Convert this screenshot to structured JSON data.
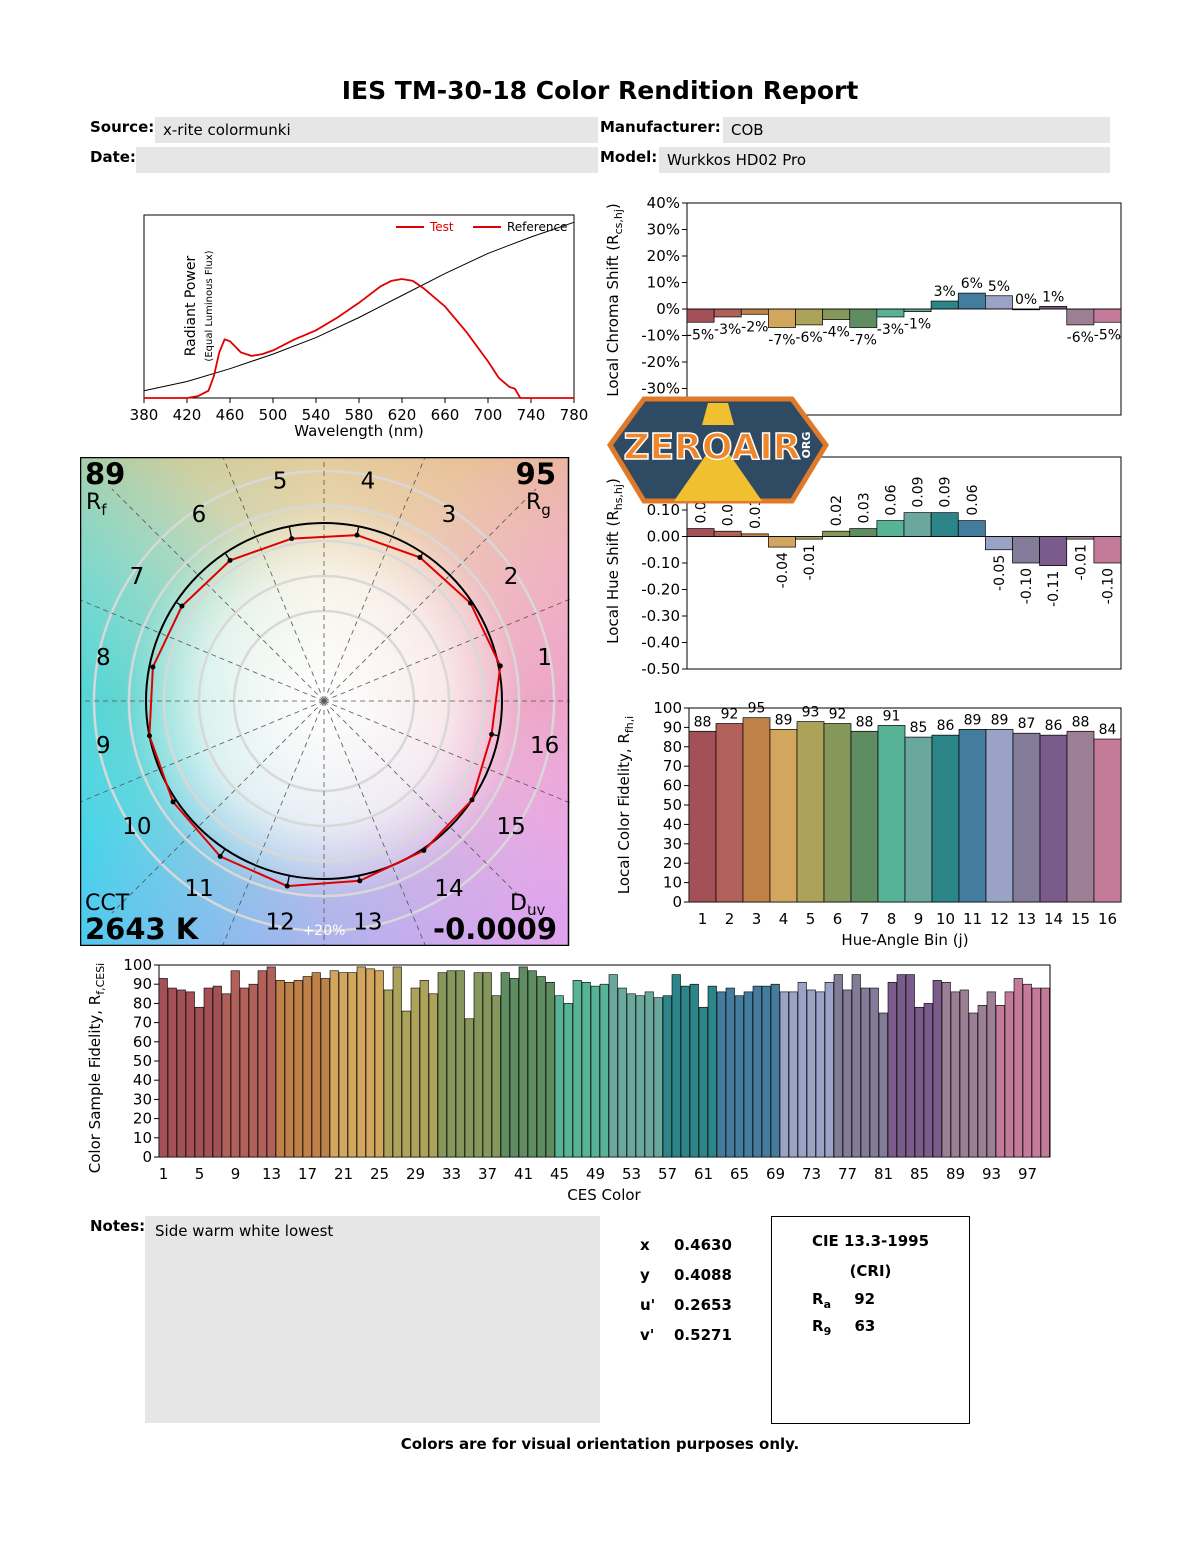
{
  "report": {
    "title": "IES TM-30-18 Color Rendition Report",
    "source_label": "Source:",
    "source": "x-rite colormunki",
    "manufacturer_label": "Manufacturer:",
    "manufacturer": "COB",
    "date_label": "Date:",
    "date": "",
    "model_label": "Model:",
    "model": "Wurkkos HD02 Pro",
    "notes_label": "Notes:",
    "notes": "Side warm white lowest",
    "footer": "Colors are for visual orientation purposes only."
  },
  "chromaticity": [
    {
      "label": "x",
      "value": "0.4630"
    },
    {
      "label": "y",
      "value": "0.4088"
    },
    {
      "label": "u'",
      "value": "0.2653"
    },
    {
      "label": "v'",
      "value": "0.5271"
    }
  ],
  "cri": {
    "title": "CIE 13.3-1995",
    "subtitle": "(CRI)",
    "ra_label": "R",
    "ra_sub": "a",
    "ra": "92",
    "r9_label": "R",
    "r9_sub": "9",
    "r9": "63"
  },
  "watermark": {
    "text": "ZEROAIR",
    "suffix": "ORG"
  },
  "chart_data": [
    {
      "type": "line",
      "id": "spectrum",
      "xlabel": "Wavelength (nm)",
      "ylabel": "Radiant Power",
      "ylabel_sub": "(Equal Luminous Flux)",
      "xlim": [
        380,
        780
      ],
      "xticks": [
        380,
        420,
        460,
        500,
        540,
        580,
        620,
        660,
        700,
        740,
        780
      ],
      "legend": "top-right",
      "series": [
        {
          "name": "Test",
          "color": "#e00000",
          "x": [
            380,
            420,
            430,
            440,
            445,
            450,
            455,
            460,
            465,
            470,
            480,
            490,
            500,
            520,
            540,
            560,
            580,
            600,
            610,
            620,
            630,
            640,
            660,
            680,
            700,
            710,
            720,
            725,
            730,
            780
          ],
          "y": [
            0,
            0,
            0.01,
            0.04,
            0.12,
            0.25,
            0.32,
            0.31,
            0.28,
            0.25,
            0.23,
            0.24,
            0.26,
            0.32,
            0.37,
            0.44,
            0.52,
            0.61,
            0.64,
            0.65,
            0.64,
            0.6,
            0.5,
            0.36,
            0.2,
            0.11,
            0.06,
            0.05,
            0,
            0
          ]
        },
        {
          "name": "Reference",
          "color": "#000000",
          "x": [
            380,
            420,
            460,
            500,
            540,
            580,
            620,
            660,
            700,
            740,
            780
          ],
          "y": [
            0.04,
            0.09,
            0.16,
            0.24,
            0.33,
            0.44,
            0.56,
            0.68,
            0.79,
            0.88,
            0.96
          ]
        }
      ]
    },
    {
      "type": "bar",
      "id": "chroma-shift",
      "ylabel": "Local Chroma Shift (R",
      "ylabel_sub": "cs,hj",
      "ylabel_end": ")",
      "ylim": [
        -40,
        40
      ],
      "yticks": [
        "40%",
        "30%",
        "20%",
        "10%",
        "0%",
        "-10%",
        "-20%",
        "-30%"
      ],
      "ytick_values": [
        40,
        30,
        20,
        10,
        0,
        -10,
        -20,
        -30
      ],
      "categories": [
        "1",
        "2",
        "3",
        "4",
        "5",
        "6",
        "7",
        "8",
        "9",
        "10",
        "11",
        "12",
        "13",
        "14",
        "15",
        "16"
      ],
      "values": [
        -5,
        -3,
        -2,
        -7,
        -6,
        -4,
        -7,
        -3,
        -1,
        3,
        6,
        5,
        0,
        1,
        -6,
        -5
      ],
      "data_labels": [
        "-5%",
        "-3%",
        "-2%",
        "-7%",
        "-6%",
        "-4%",
        "-7%",
        "-3%",
        "-1%",
        "3%",
        "6%",
        "5%",
        "0%",
        "1%",
        "-6%",
        "-5%"
      ]
    },
    {
      "type": "bar",
      "id": "hue-shift",
      "ylabel": "Local Hue Shift (R",
      "ylabel_sub": "hs,hj",
      "ylabel_end": ")",
      "ylim": [
        -0.5,
        0.3
      ],
      "yticks": [
        "0.20",
        "0.10",
        "0.00",
        "-0.10",
        "-0.20",
        "-0.30",
        "-0.40",
        "-0.50"
      ],
      "ytick_values": [
        0.2,
        0.1,
        0,
        -0.1,
        -0.2,
        -0.3,
        -0.4,
        -0.5
      ],
      "categories": [
        "1",
        "2",
        "3",
        "4",
        "5",
        "6",
        "7",
        "8",
        "9",
        "10",
        "11",
        "12",
        "13",
        "14",
        "15",
        "16"
      ],
      "values": [
        0.03,
        0.02,
        0.01,
        -0.04,
        -0.01,
        0.02,
        0.03,
        0.06,
        0.09,
        0.09,
        0.06,
        -0.05,
        -0.1,
        -0.11,
        -0.01,
        -0.1
      ],
      "data_labels": [
        "0.03",
        "0.02",
        "0.01",
        "-0.04",
        "-0.01",
        "0.02",
        "0.03",
        "0.06",
        "0.09",
        "0.09",
        "0.06",
        "-0.05",
        "-0.10",
        "-0.11",
        "-0.01",
        "-0.10"
      ]
    },
    {
      "type": "bar",
      "id": "local-fidelity",
      "xlabel": "Hue-Angle Bin (j)",
      "ylabel": "Local Color Fidelity, R",
      "ylabel_sub": "fh,i",
      "ylim": [
        0,
        100
      ],
      "yticks": [
        0,
        10,
        20,
        30,
        40,
        50,
        60,
        70,
        80,
        90,
        100
      ],
      "categories": [
        "1",
        "2",
        "3",
        "4",
        "5",
        "6",
        "7",
        "8",
        "9",
        "10",
        "11",
        "12",
        "13",
        "14",
        "15",
        "16"
      ],
      "values": [
        88,
        92,
        95,
        89,
        93,
        92,
        88,
        91,
        85,
        86,
        89,
        89,
        87,
        86,
        88,
        84
      ]
    },
    {
      "type": "bar",
      "id": "ces-fidelity",
      "xlabel": "CES Color",
      "ylabel": "Color Sample Fidelity, R",
      "ylabel_sub": "f,CESi",
      "ylim": [
        0,
        100
      ],
      "yticks": [
        0,
        10,
        20,
        30,
        40,
        50,
        60,
        70,
        80,
        90,
        100
      ],
      "xticks": [
        "1",
        "5",
        "9",
        "13",
        "17",
        "21",
        "25",
        "29",
        "33",
        "37",
        "41",
        "45",
        "49",
        "53",
        "57",
        "61",
        "65",
        "69",
        "73",
        "77",
        "81",
        "85",
        "89",
        "93",
        "97"
      ],
      "values": [
        93,
        88,
        87,
        86,
        78,
        88,
        89,
        85,
        97,
        88,
        90,
        97,
        99,
        92,
        91,
        92,
        94,
        96,
        93,
        97,
        96,
        96,
        99,
        98,
        97,
        87,
        99,
        76,
        88,
        92,
        85,
        96,
        97,
        97,
        72,
        96,
        96,
        84,
        96,
        93,
        99,
        97,
        94,
        91,
        84,
        80,
        92,
        91,
        89,
        90,
        95,
        88,
        85,
        84,
        86,
        83,
        84,
        95,
        89,
        90,
        78,
        89,
        86,
        88,
        84,
        86,
        89,
        89,
        90,
        86,
        86,
        91,
        87,
        86,
        91,
        95,
        87,
        95,
        88,
        88,
        75,
        91,
        95,
        95,
        78,
        80,
        92,
        91,
        86,
        87,
        75,
        79,
        86,
        79,
        86,
        93,
        90,
        88,
        88
      ]
    },
    {
      "type": "scatter",
      "id": "color-vector-graphic",
      "rf_value": "89",
      "rf_label": "R",
      "rf_sub": "f",
      "rg_value": "95",
      "rg_label": "R",
      "rg_sub": "g",
      "cct_label": "CCT",
      "cct_value": "2643 K",
      "duv_label": "D",
      "duv_sub": "uv",
      "duv_value": "-0.0009",
      "ring_label": "+20%",
      "bins": [
        "1",
        "2",
        "3",
        "4",
        "5",
        "6",
        "7",
        "8",
        "9",
        "10",
        "11",
        "12",
        "13",
        "14",
        "15",
        "16"
      ],
      "test_radius_ratio": [
        1.01,
        0.99,
        0.97,
        0.95,
        0.93,
        0.95,
        0.96,
        0.98,
        1.0,
        1.02,
        1.05,
        1.06,
        1.03,
        1.01,
        1.0,
        0.96
      ]
    }
  ],
  "bin_colors": [
    "#a35057",
    "#b1605a",
    "#c08148",
    "#d3a65e",
    "#ada25a",
    "#85975b",
    "#5f8c61",
    "#56b395",
    "#6aa89e",
    "#2c8589",
    "#437c9c",
    "#9aa3c5",
    "#827c99",
    "#7b5a8c",
    "#9d7f95",
    "#c47b9a"
  ]
}
